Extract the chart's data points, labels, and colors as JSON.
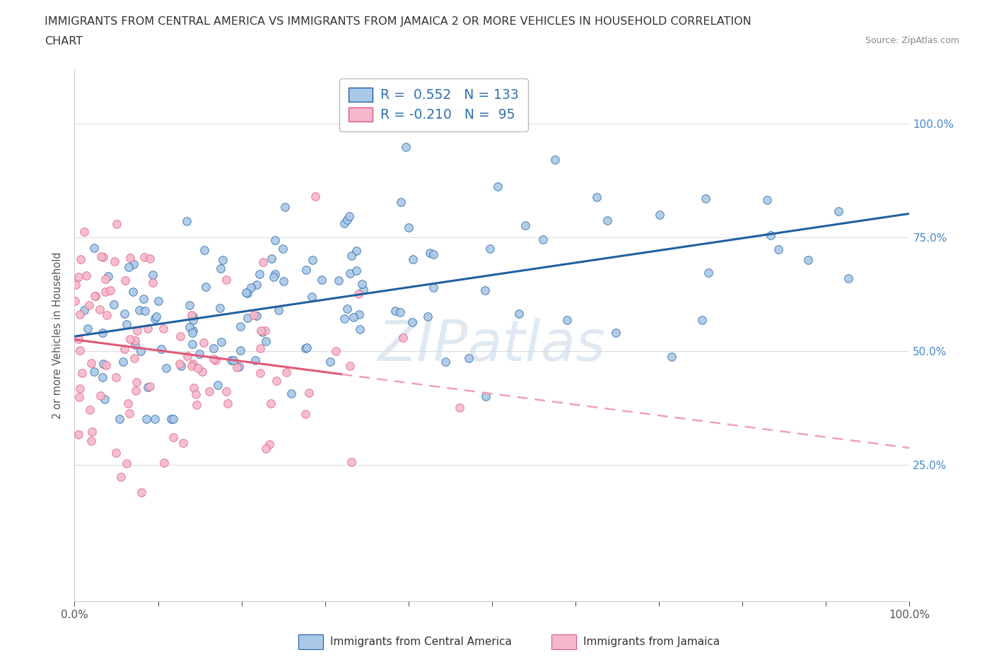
{
  "title_line1": "IMMIGRANTS FROM CENTRAL AMERICA VS IMMIGRANTS FROM JAMAICA 2 OR MORE VEHICLES IN HOUSEHOLD CORRELATION",
  "title_line2": "CHART",
  "source": "Source: ZipAtlas.com",
  "ylabel": "2 or more Vehicles in Household",
  "xlim": [
    0.0,
    1.0
  ],
  "ylim": [
    -0.05,
    1.12
  ],
  "r_blue": 0.552,
  "n_blue": 133,
  "r_pink": -0.21,
  "n_pink": 95,
  "legend_labels": [
    "Immigrants from Central America",
    "Immigrants from Jamaica"
  ],
  "blue_scatter_color": "#aac8e8",
  "pink_scatter_color": "#f5b8cc",
  "blue_line_color": "#2060a0",
  "pink_line_color": "#e05878",
  "pink_dash_color": "#f0a0b8",
  "watermark": "ZIPatlas",
  "background_color": "#ffffff",
  "grid_color": "#dddddd",
  "ytick_positions": [
    0.25,
    0.5,
    0.75,
    1.0
  ],
  "ytick_labels": [
    "25.0%",
    "50.0%",
    "75.0%",
    "100.0%"
  ],
  "xtick_positions": [
    0.0,
    0.1,
    0.2,
    0.3,
    0.4,
    0.5,
    0.6,
    0.7,
    0.8,
    0.9,
    1.0
  ],
  "xtick_labels_show": [
    "0.0%",
    "",
    "",
    "",
    "",
    "",
    "",
    "",
    "",
    "",
    "100.0%"
  ]
}
